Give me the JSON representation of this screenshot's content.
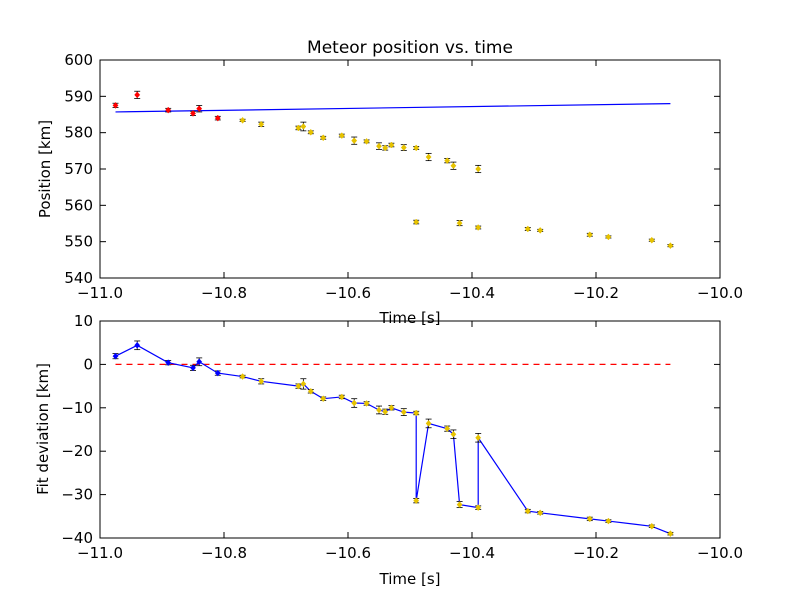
{
  "chart_data": [
    {
      "type": "scatter",
      "title": "Meteor position vs. time",
      "xlabel": "Time [s]",
      "ylabel": "Position [km]",
      "xlim": [
        -11.0,
        -10.0
      ],
      "ylim": [
        540,
        600
      ],
      "xticks": [
        "−11.0",
        "−10.8",
        "−10.6",
        "−10.4",
        "−10.2",
        "−10.0"
      ],
      "yticks": [
        "540",
        "550",
        "560",
        "570",
        "580",
        "590",
        "600"
      ],
      "grid": false,
      "legend": "none",
      "series": [
        {
          "color": "#ff0000",
          "x": [
            -10.975,
            -10.94,
            -10.89,
            -10.85,
            -10.84,
            -10.81
          ],
          "y": [
            587.5,
            590.4,
            586.2,
            585.3,
            586.6,
            584.0
          ],
          "yerr": [
            0.6,
            1.0,
            0.5,
            0.6,
            0.9,
            0.5
          ]
        },
        {
          "color": "#e6c200",
          "x": [
            -10.77,
            -10.74,
            -10.68,
            -10.672,
            -10.66,
            -10.64,
            -10.61,
            -10.59,
            -10.57,
            -10.55,
            -10.54,
            -10.53,
            -10.51,
            -10.49,
            -10.47,
            -10.44,
            -10.43,
            -10.39,
            -10.49,
            -10.42,
            -10.39,
            -10.31,
            -10.29,
            -10.21,
            -10.18,
            -10.11,
            -10.08
          ],
          "y": [
            583.4,
            582.3,
            581.3,
            581.7,
            580.1,
            578.6,
            579.2,
            577.8,
            577.6,
            576.3,
            575.8,
            576.6,
            575.9,
            575.8,
            573.3,
            572.3,
            570.9,
            570.0,
            555.4,
            555.1,
            553.9,
            553.5,
            553.1,
            551.9,
            551.3,
            550.4,
            548.9
          ],
          "yerr": [
            0.3,
            0.6,
            0.5,
            1.2,
            0.4,
            0.4,
            0.4,
            1.0,
            0.4,
            0.9,
            0.6,
            0.5,
            0.8,
            0.4,
            1.0,
            0.6,
            1.0,
            1.0,
            0.5,
            0.7,
            0.4,
            0.4,
            0.3,
            0.4,
            0.3,
            0.3,
            0.3
          ]
        }
      ],
      "fit_line": {
        "color": "#0000ff",
        "x": [
          -10.975,
          -10.08
        ],
        "y": [
          585.7,
          588.0
        ]
      }
    },
    {
      "type": "line",
      "xlabel": "Time [s]",
      "ylabel": "Fit deviation [km]",
      "xlim": [
        -11.0,
        -10.0
      ],
      "ylim": [
        -40,
        10
      ],
      "xticks": [
        "−11.0",
        "−10.8",
        "−10.6",
        "−10.4",
        "−10.2",
        "−10.0"
      ],
      "yticks": [
        "−40",
        "−30",
        "−20",
        "−10",
        "0",
        "10"
      ],
      "grid": false,
      "legend": "none",
      "line_color": "#0000ff",
      "marker_colors": [
        "#0000ff",
        "#0000ff",
        "#0000ff",
        "#0000ff",
        "#0000ff",
        "#0000ff",
        "#e6c200",
        "#e6c200",
        "#e6c200",
        "#e6c200",
        "#e6c200",
        "#e6c200",
        "#e6c200",
        "#e6c200",
        "#e6c200",
        "#e6c200",
        "#e6c200",
        "#e6c200",
        "#e6c200",
        "#e6c200",
        "#e6c200",
        "#e6c200",
        "#e6c200",
        "#e6c200",
        "#e6c200",
        "#e6c200",
        "#e6c200",
        "#e6c200",
        "#e6c200",
        "#e6c200",
        "#e6c200",
        "#e6c200",
        "#e6c200"
      ],
      "x": [
        -10.975,
        -10.94,
        -10.89,
        -10.85,
        -10.84,
        -10.81,
        -10.77,
        -10.74,
        -10.68,
        -10.672,
        -10.66,
        -10.64,
        -10.61,
        -10.59,
        -10.57,
        -10.55,
        -10.54,
        -10.53,
        -10.51,
        -10.49,
        -10.49,
        -10.47,
        -10.44,
        -10.43,
        -10.42,
        -10.39,
        -10.39,
        -10.31,
        -10.29,
        -10.21,
        -10.18,
        -10.11,
        -10.08
      ],
      "y": [
        1.9,
        4.4,
        0.4,
        -0.8,
        0.6,
        -2.0,
        -2.8,
        -3.9,
        -5.0,
        -4.5,
        -6.2,
        -7.9,
        -7.5,
        -8.9,
        -9.0,
        -10.5,
        -10.9,
        -10.0,
        -11.0,
        -11.2,
        -31.4,
        -13.6,
        -14.8,
        -16.1,
        -32.3,
        -33.0,
        -16.9,
        -33.8,
        -34.2,
        -35.6,
        -36.1,
        -37.3,
        -39.0
      ],
      "yerr": [
        0.6,
        1.0,
        0.5,
        0.6,
        0.9,
        0.5,
        0.3,
        0.6,
        0.5,
        1.2,
        0.4,
        0.4,
        0.4,
        1.0,
        0.4,
        0.9,
        0.6,
        0.5,
        0.8,
        0.4,
        0.5,
        1.0,
        0.6,
        1.0,
        0.7,
        0.4,
        1.0,
        0.4,
        0.3,
        0.4,
        0.3,
        0.3,
        0.3
      ],
      "reference_line": {
        "y": 0,
        "x": [
          -10.975,
          -10.08
        ],
        "color": "#ff0000",
        "style": "dashed"
      }
    }
  ]
}
